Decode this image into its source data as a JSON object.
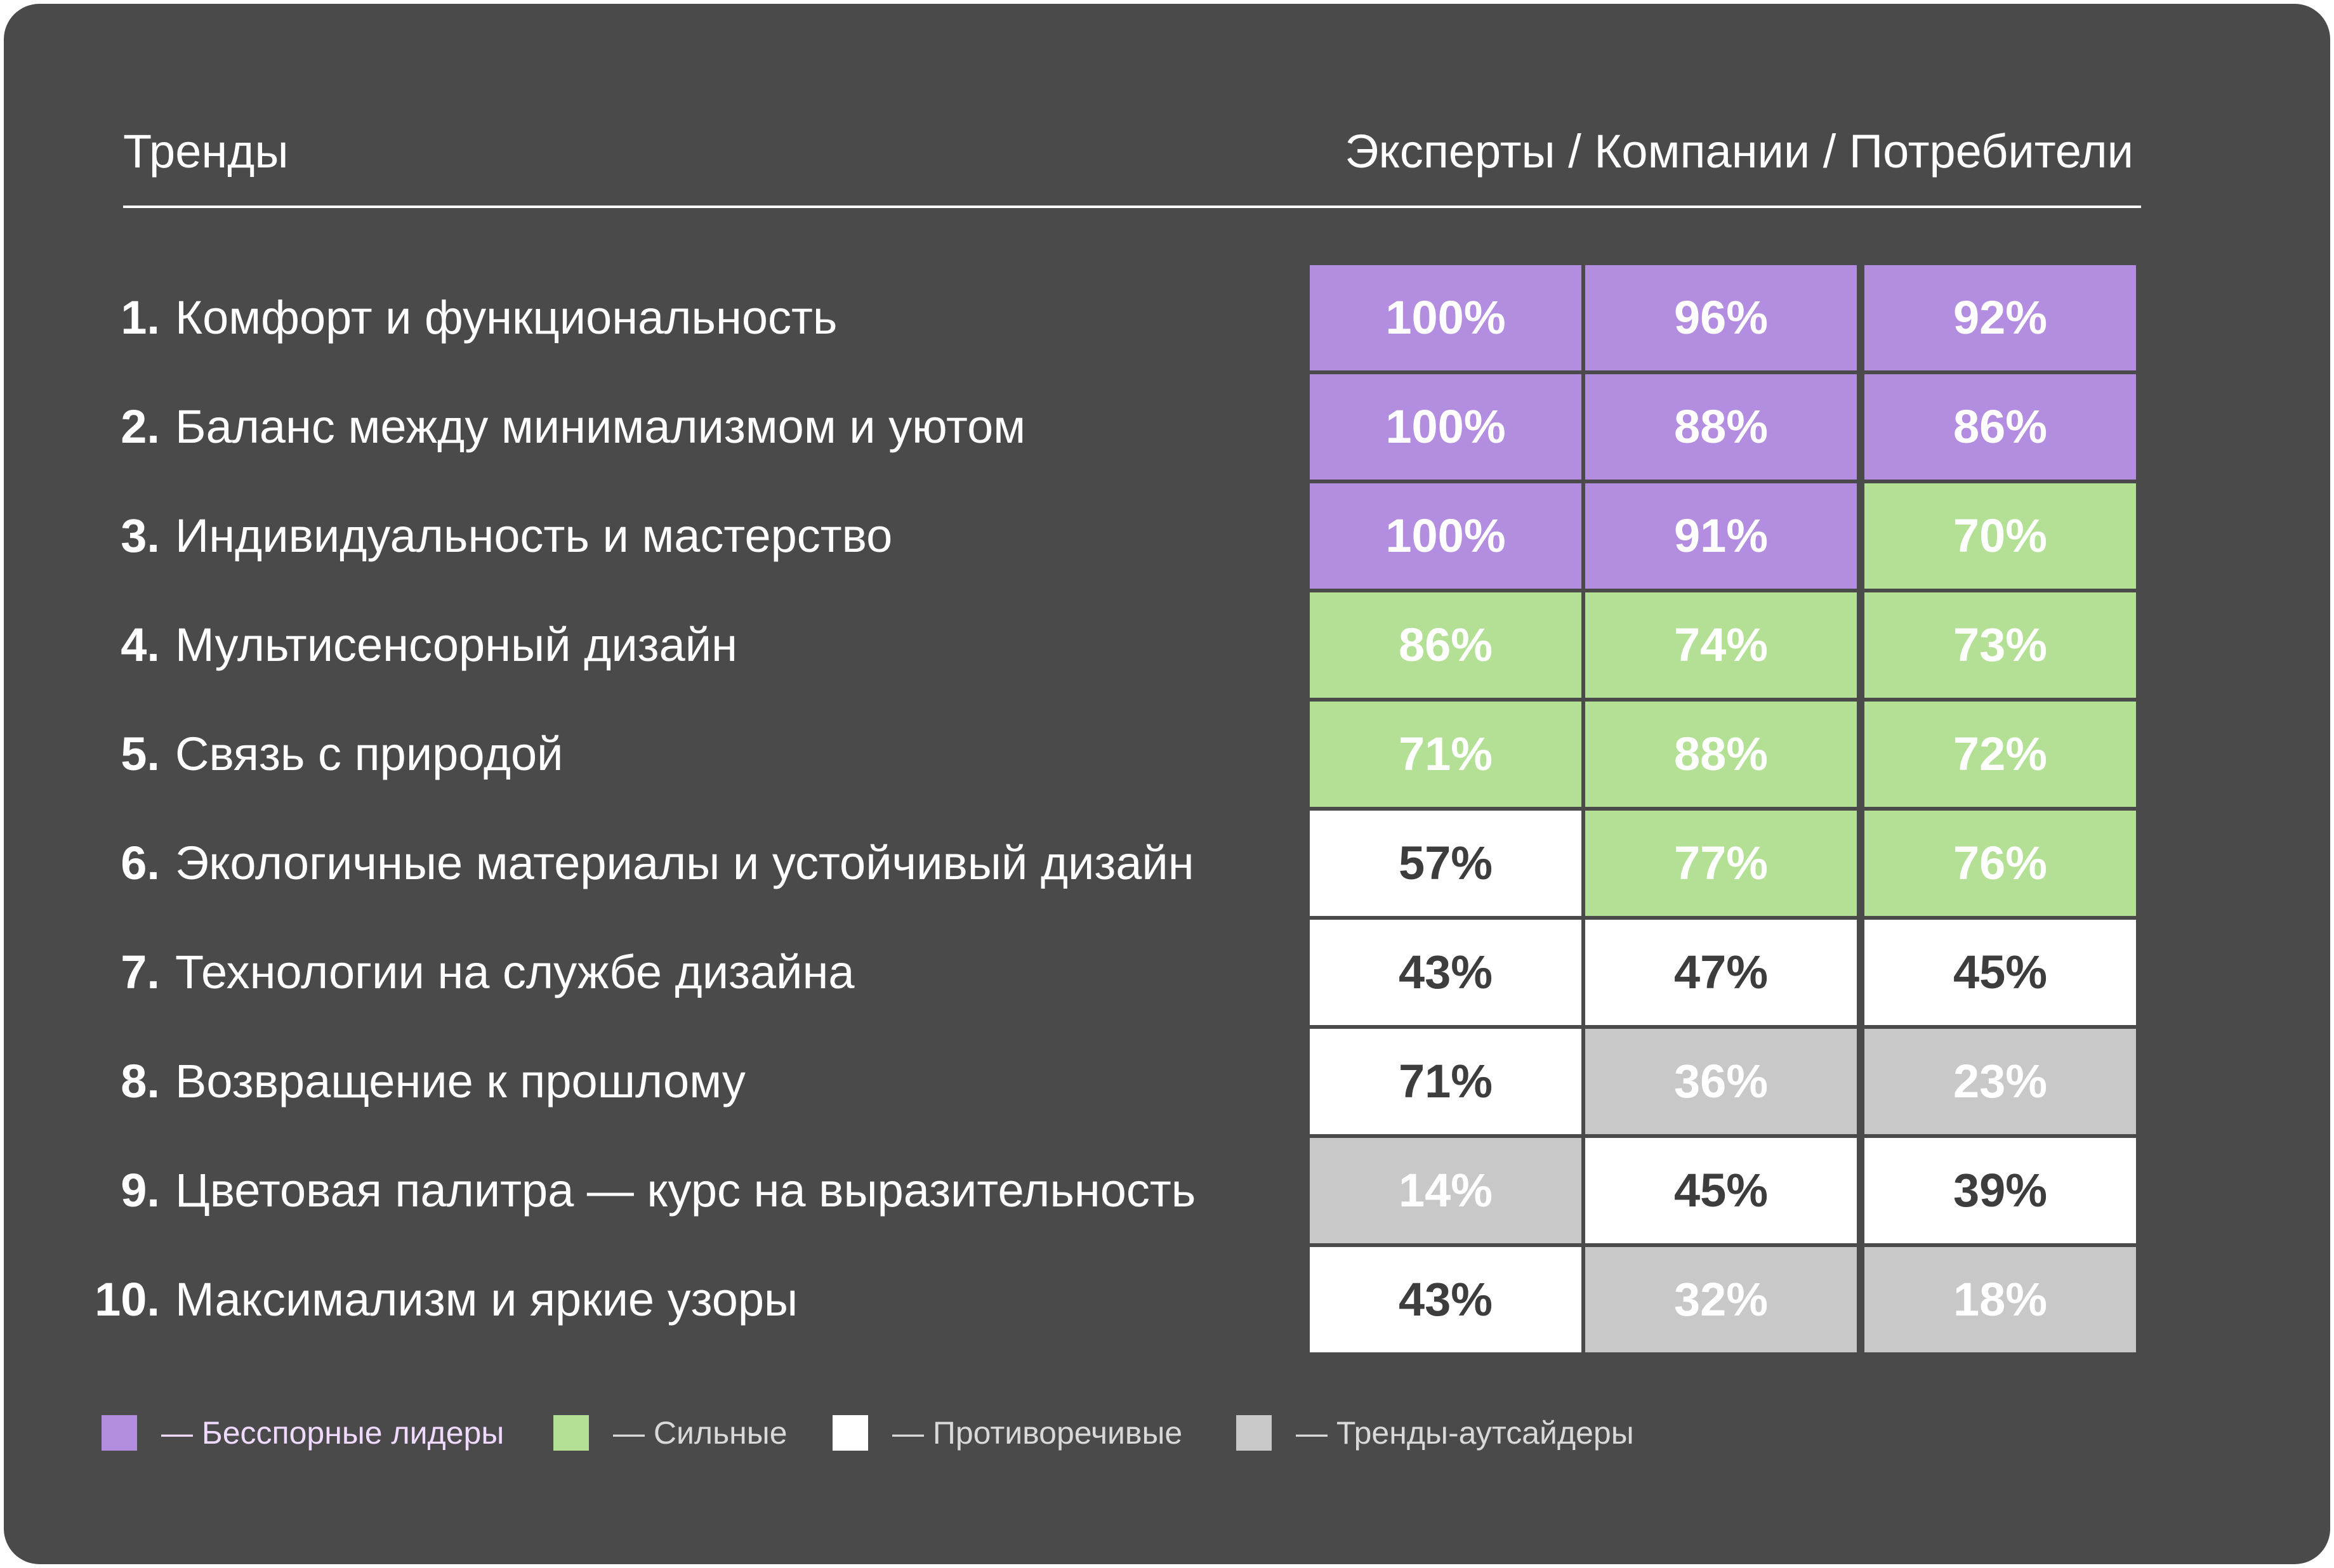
{
  "colors": {
    "leader": "#b38ddf",
    "strong": "#b3e095",
    "controversial": "#ffffff",
    "outsider": "#c8c8c8"
  },
  "chart_data": {
    "type": "table",
    "title": "Тренды",
    "columns_header": "Эксперты / Компании / Потребители",
    "series_names": [
      "Эксперты",
      "Компании",
      "Потребители"
    ],
    "rows": [
      {
        "num": "1.",
        "label": "Комфорт и функциональность",
        "values": [
          100,
          96,
          92
        ],
        "display": [
          "100%",
          "96%",
          "92%"
        ],
        "categories": [
          "leader",
          "leader",
          "leader"
        ]
      },
      {
        "num": "2.",
        "label": "Баланс между минимализмом и уютом",
        "values": [
          100,
          88,
          86
        ],
        "display": [
          "100%",
          "88%",
          "86%"
        ],
        "categories": [
          "leader",
          "leader",
          "leader"
        ]
      },
      {
        "num": "3.",
        "label": "Индивидуальность и мастерство",
        "values": [
          100,
          91,
          70
        ],
        "display": [
          "100%",
          "91%",
          "70%"
        ],
        "categories": [
          "leader",
          "leader",
          "strong"
        ]
      },
      {
        "num": "4.",
        "label": "Мультисенсорный дизайн",
        "values": [
          86,
          74,
          73
        ],
        "display": [
          "86%",
          "74%",
          "73%"
        ],
        "categories": [
          "strong",
          "strong",
          "strong"
        ]
      },
      {
        "num": "5.",
        "label": "Связь с природой",
        "values": [
          71,
          88,
          72
        ],
        "display": [
          "71%",
          "88%",
          "72%"
        ],
        "categories": [
          "strong",
          "strong",
          "strong"
        ]
      },
      {
        "num": "6.",
        "label": "Экологичные материалы и устойчивый дизайн",
        "values": [
          57,
          77,
          76
        ],
        "display": [
          "57%",
          "77%",
          "76%"
        ],
        "categories": [
          "controversial",
          "strong",
          "strong"
        ]
      },
      {
        "num": "7.",
        "label": "Технологии на службе дизайна",
        "values": [
          43,
          47,
          45
        ],
        "display": [
          "43%",
          "47%",
          "45%"
        ],
        "categories": [
          "controversial",
          "controversial",
          "controversial"
        ]
      },
      {
        "num": "8.",
        "label": "Возвращение к прошлому",
        "values": [
          71,
          36,
          23
        ],
        "display": [
          "71%",
          "36%",
          "23%"
        ],
        "categories": [
          "controversial",
          "outsider",
          "outsider"
        ]
      },
      {
        "num": "9.",
        "label": "Цветовая палитра — курс на выразительность",
        "values": [
          14,
          45,
          39
        ],
        "display": [
          "14%",
          "45%",
          "39%"
        ],
        "categories": [
          "outsider",
          "controversial",
          "controversial"
        ]
      },
      {
        "num": "10.",
        "label": "Максимализм и яркие узоры",
        "values": [
          43,
          32,
          18
        ],
        "display": [
          "43%",
          "32%",
          "18%"
        ],
        "categories": [
          "controversial",
          "outsider",
          "outsider"
        ]
      }
    ],
    "legend": [
      {
        "category": "leader",
        "label": "— Бесспорные лидеры"
      },
      {
        "category": "strong",
        "label": "— Сильные"
      },
      {
        "category": "controversial",
        "label": "— Противоречивые"
      },
      {
        "category": "outsider",
        "label": "— Тренды-аутсайдеры"
      }
    ]
  }
}
